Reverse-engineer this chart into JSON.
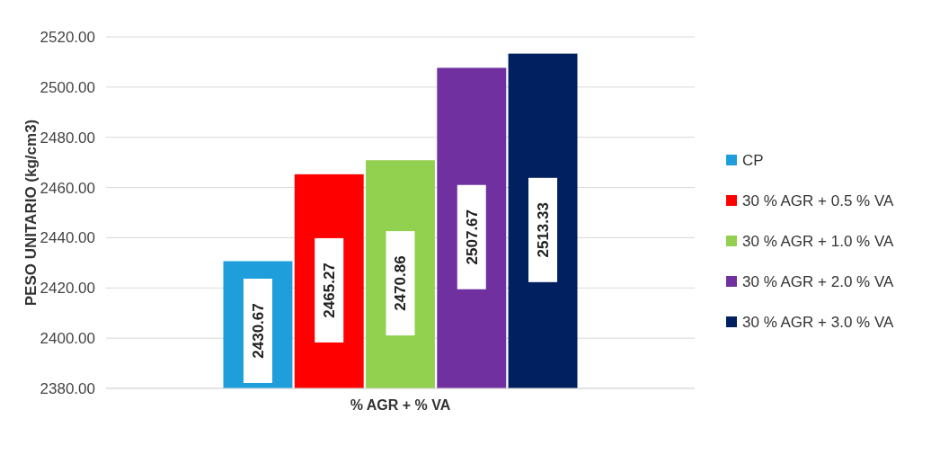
{
  "chart_data": {
    "type": "bar",
    "ylabel": "PESO UNITARIO (kg/cm3)",
    "xlabel": "% AGR + % VA",
    "categories": [
      null
    ],
    "series": [
      {
        "name": "CP",
        "color": "#1e9fdc",
        "values": [
          2430.67
        ]
      },
      {
        "name": "30 % AGR + 0.5 % VA",
        "color": "#ff0000",
        "values": [
          2465.27
        ]
      },
      {
        "name": "30 % AGR + 1.0 % VA",
        "color": "#92d050",
        "values": [
          2470.86
        ]
      },
      {
        "name": "30 % AGR + 2.0 % VA",
        "color": "#7030a0",
        "values": [
          2507.67
        ]
      },
      {
        "name": "30 % AGR + 3.0 % VA",
        "color": "#002060",
        "values": [
          2513.33
        ]
      }
    ],
    "ylim": [
      2380,
      2520
    ],
    "yticks": [
      {
        "value": 2380,
        "label": "2380.00"
      },
      {
        "value": 2400,
        "label": "2400.00"
      },
      {
        "value": 2420,
        "label": "2420.00"
      },
      {
        "value": 2440,
        "label": "2440.00"
      },
      {
        "value": 2460,
        "label": "2460.00"
      },
      {
        "value": 2480,
        "label": "2480.00"
      },
      {
        "value": 2500,
        "label": "2500.00"
      },
      {
        "value": 2520,
        "label": "2520.00"
      }
    ],
    "grid": "y",
    "legend": "right",
    "data_labels": true
  }
}
